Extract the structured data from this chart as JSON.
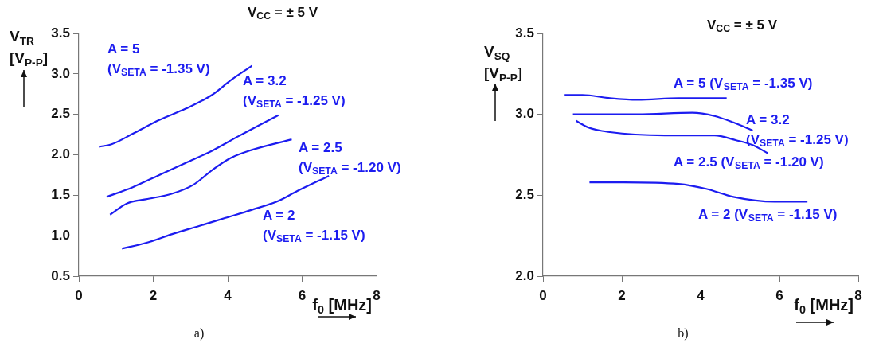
{
  "chart_data": [
    {
      "type": "line",
      "title": "V$_{CC}$ = ± 5 V",
      "xlabel": "f$_{0}$ [MHz]",
      "ylabel": "V$_{TR}$\n[V$_{P-P}$]",
      "xlim": [
        0,
        8
      ],
      "xticks": [
        0,
        2,
        4,
        6,
        8
      ],
      "ylim": [
        0.5,
        3.5
      ],
      "yticks": [
        0.5,
        {
          "value": 1,
          "label": "1.0"
        },
        1.5,
        {
          "value": 2,
          "label": "2.0"
        },
        2.5,
        {
          "value": 3,
          "label": "3.0"
        },
        3.5
      ],
      "grid": false,
      "legend": false,
      "marker": "none",
      "line_style": "solid",
      "series": [
        {
          "name": "A = 5 (V$_{SETA}$ = -1.35 V)",
          "color": "#1c1cf0",
          "x": [
            0.54,
            0.88,
            1.45,
            2.16,
            2.87,
            3.58,
            4.08,
            4.65
          ],
          "values": [
            2.1,
            2.13,
            2.26,
            2.43,
            2.57,
            2.74,
            2.92,
            3.1
          ]
        },
        {
          "name": "A = 3.2 (V$_{SETA}$ = -1.25 V)",
          "color": "#1c1cf0",
          "x": [
            0.75,
            1.45,
            2.16,
            2.87,
            3.58,
            4.29,
            5.36
          ],
          "values": [
            1.48,
            1.6,
            1.75,
            1.9,
            2.05,
            2.23,
            2.49
          ]
        },
        {
          "name": "A = 2.5 (V$_{SETA}$ = -1.20 V)",
          "color": "#1c1cf0",
          "x": [
            0.84,
            1.3,
            1.8,
            2.51,
            3.08,
            3.58,
            4.08,
            4.65,
            5.72
          ],
          "values": [
            1.26,
            1.4,
            1.45,
            1.52,
            1.63,
            1.81,
            1.96,
            2.06,
            2.19
          ]
        },
        {
          "name": "A = 2 (V$_{SETA}$ = -1.15 V)",
          "color": "#1c1cf0",
          "x": [
            1.16,
            1.8,
            2.51,
            3.23,
            3.94,
            4.65,
            5.36,
            5.86,
            6.72
          ],
          "values": [
            0.84,
            0.91,
            1.02,
            1.12,
            1.22,
            1.32,
            1.43,
            1.55,
            1.74
          ]
        }
      ],
      "annotations": [
        "a)"
      ]
    },
    {
      "type": "line",
      "title": "V$_{CC}$ = ± 5 V",
      "xlabel": "f$_{0}$ [MHz]",
      "ylabel": "V$_{SQ}$\n[V$_{P-P}$]",
      "xlim": [
        0,
        8
      ],
      "xticks": [
        0,
        2,
        4,
        6,
        8
      ],
      "ylim": [
        2,
        3.5
      ],
      "yticks": [
        {
          "value": 2,
          "label": "2.0"
        },
        2.5,
        {
          "value": 3,
          "label": "3.0"
        },
        3.5
      ],
      "grid": false,
      "legend": false,
      "marker": "none",
      "line_style": "solid",
      "series": [
        {
          "name": "A = 5 (V$_{SETA}$ = -1.35 V)",
          "color": "#1c1cf0",
          "x": [
            0.55,
            1.0,
            1.7,
            2.4,
            3.44,
            4.66
          ],
          "values": [
            3.12,
            3.12,
            3.1,
            3.09,
            3.1,
            3.1
          ]
        },
        {
          "name": "A = 3.2 (V$_{SETA}$ = -1.25 V)",
          "color": "#1c1cf0",
          "x": [
            0.76,
            2.4,
            3.79,
            4.35,
            4.83,
            5.32
          ],
          "values": [
            3.0,
            3.0,
            3.01,
            2.99,
            2.95,
            2.9
          ]
        },
        {
          "name": "A = 2.5 (V$_{SETA}$ = -1.20 V)",
          "color": "#1c1cf0",
          "x": [
            0.84,
            1.14,
            1.7,
            3.09,
            4.35,
            4.9,
            5.32,
            5.7
          ],
          "values": [
            2.96,
            2.92,
            2.89,
            2.87,
            2.87,
            2.84,
            2.81,
            2.76
          ]
        },
        {
          "name": "A = 2 (V$_{SETA}$ = -1.15 V)",
          "color": "#1c1cf0",
          "x": [
            1.18,
            2.05,
            3.44,
            4.14,
            4.83,
            5.88,
            6.71
          ],
          "values": [
            2.58,
            2.58,
            2.57,
            2.54,
            2.49,
            2.46,
            2.46
          ]
        }
      ],
      "annotations": [
        "b)"
      ]
    }
  ]
}
